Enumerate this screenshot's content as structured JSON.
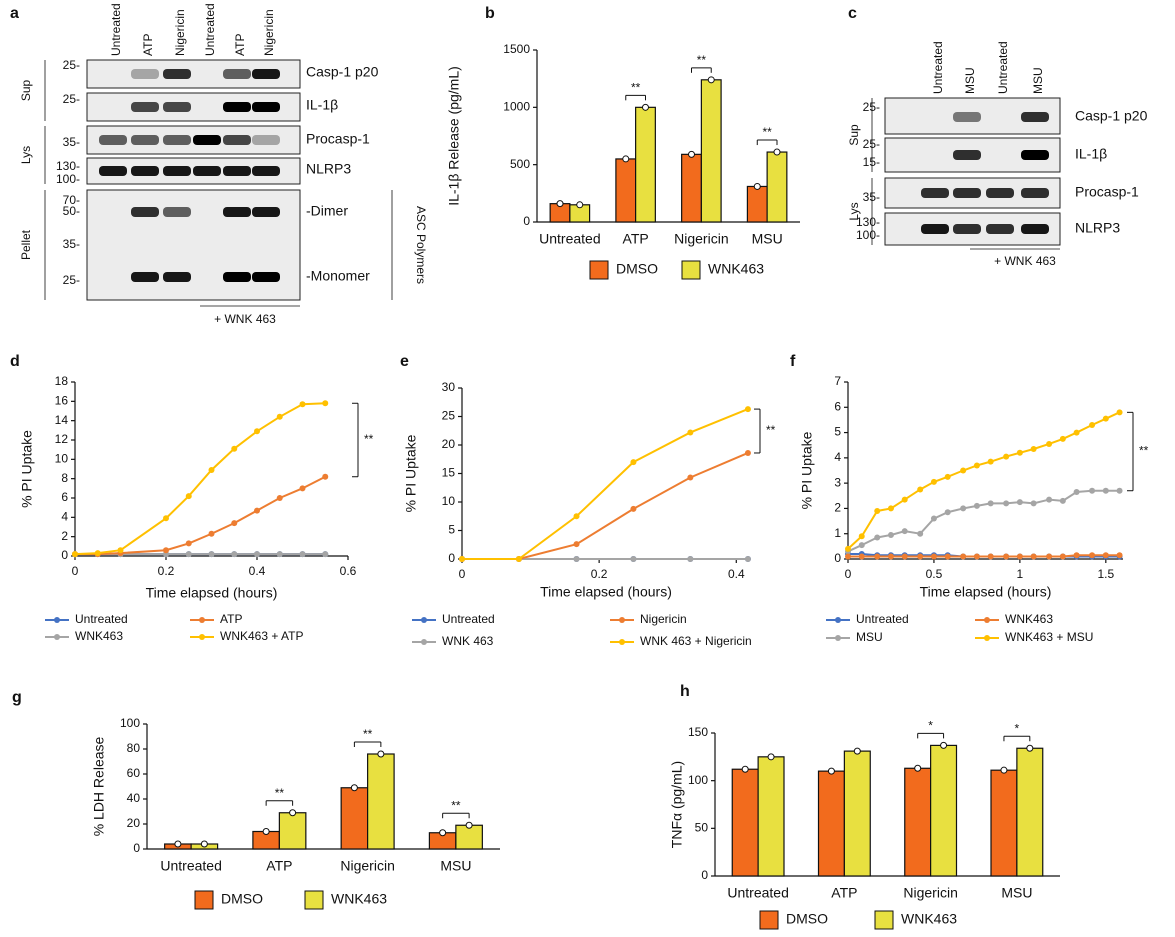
{
  "blots": [
    {
      "label": "a",
      "lanes": [
        "Untreated",
        "ATP",
        "Nigericin",
        "Untreated",
        "ATP",
        "Nigericin"
      ],
      "treatment": "+ WNK 463",
      "side_label": "ASC Polymers",
      "sections": [
        {
          "name": "Sup",
          "panels": [
            {
              "markers": [
                "25-"
              ],
              "labels": [
                "Casp-1 p20"
              ]
            },
            {
              "markers": [
                "25-"
              ],
              "labels": [
                "IL-1β"
              ]
            }
          ]
        },
        {
          "name": "Lys",
          "panels": [
            {
              "markers": [
                "35-"
              ],
              "labels": [
                "Procasp-1"
              ]
            },
            {
              "markers": [
                "130-",
                "100-"
              ],
              "labels": [
                "NLRP3"
              ]
            }
          ]
        },
        {
          "name": "Pellet",
          "panels": [
            {
              "markers": [
                "70-",
                "50-",
                "35-",
                "25-"
              ],
              "labels": [
                "-Dimer",
                "-Monomer"
              ]
            }
          ]
        }
      ]
    },
    {
      "label": "c",
      "lanes": [
        "Untreated",
        "MSU",
        "Untreated",
        "MSU"
      ],
      "treatment": "+ WNK 463",
      "sections": [
        {
          "name": "Sup",
          "panels": [
            {
              "markers": [
                "25-"
              ],
              "labels": [
                "Casp-1 p20"
              ]
            },
            {
              "markers": [
                "25-",
                "15-"
              ],
              "labels": [
                "IL-1β"
              ]
            }
          ]
        },
        {
          "name": "Lys",
          "panels": [
            {
              "markers": [
                "35-"
              ],
              "labels": [
                "Procasp-1"
              ]
            },
            {
              "markers": [
                "130-",
                "100-"
              ],
              "labels": [
                "NLRP3"
              ]
            }
          ]
        }
      ]
    }
  ],
  "chart_data": [
    {
      "type": "bar",
      "label": "b",
      "y_label": "IL-1β Release (pg/mL)",
      "categories": [
        "Untreated",
        "ATP",
        "Nigericin",
        "MSU"
      ],
      "series": [
        {
          "name": "DMSO",
          "color": "#f26b1d",
          "values": [
            160,
            550,
            590,
            310
          ]
        },
        {
          "name": "WNK463",
          "color": "#e8e040",
          "values": [
            150,
            1000,
            1240,
            610
          ]
        }
      ],
      "significance": [
        null,
        "**",
        "**",
        "**"
      ],
      "ylim": [
        0,
        1500
      ],
      "yticks": [
        0,
        500,
        1000,
        1500
      ]
    },
    {
      "type": "line",
      "label": "d",
      "x_label": "Time elapsed (hours)",
      "y_label": "% PI Uptake",
      "annotation": "**",
      "x": [
        0,
        0.05,
        0.1,
        0.2,
        0.25,
        0.3,
        0.35,
        0.4,
        0.45,
        0.5,
        0.55
      ],
      "series": [
        {
          "name": "Untreated",
          "color": "#4472c4",
          "values": [
            0.2,
            0.2,
            0.2,
            0.2,
            0.2,
            0.2,
            0.2,
            0.2,
            0.2,
            0.2,
            0.2
          ]
        },
        {
          "name": "ATP",
          "color": "#ed7d31",
          "values": [
            0.2,
            0.2,
            0.3,
            0.6,
            1.3,
            2.3,
            3.4,
            4.7,
            6.0,
            7.0,
            8.2
          ]
        },
        {
          "name": "WNK463",
          "color": "#a5a5a5",
          "values": [
            0.2,
            0.2,
            0.2,
            0.2,
            0.2,
            0.2,
            0.2,
            0.2,
            0.2,
            0.2,
            0.2
          ]
        },
        {
          "name": "WNK463 + ATP",
          "color": "#ffc000",
          "values": [
            0.2,
            0.3,
            0.6,
            3.9,
            6.2,
            8.9,
            11.1,
            12.9,
            14.4,
            15.7,
            15.8
          ]
        }
      ],
      "xlim": [
        0,
        0.6
      ],
      "xticks": [
        0,
        0.2,
        0.4,
        0.6
      ],
      "ylim": [
        0,
        18
      ],
      "yticks": [
        0,
        2,
        4,
        6,
        8,
        10,
        12,
        14,
        16,
        18
      ]
    },
    {
      "type": "line",
      "label": "e",
      "x_label": "Time elapsed (hours)",
      "y_label": "% PI Uptake",
      "annotation": "**",
      "x": [
        0,
        0.083,
        0.167,
        0.25,
        0.333,
        0.417
      ],
      "series": [
        {
          "name": "Untreated",
          "color": "#4472c4",
          "values": [
            0,
            0,
            0,
            0,
            0,
            0
          ]
        },
        {
          "name": "Nigericin",
          "color": "#ed7d31",
          "values": [
            0,
            0,
            2.6,
            8.8,
            14.3,
            18.6
          ]
        },
        {
          "name": "WNK 463",
          "color": "#a5a5a5",
          "values": [
            0,
            0,
            0,
            0,
            0,
            0
          ]
        },
        {
          "name": "WNK 463 + Nigericin",
          "color": "#ffc000",
          "values": [
            0,
            0,
            7.5,
            17,
            22.2,
            26.3
          ]
        }
      ],
      "xlim": [
        0,
        0.42
      ],
      "xticks": [
        0,
        0.2,
        0.4
      ],
      "ylim": [
        0,
        30
      ],
      "yticks": [
        0,
        5,
        10,
        15,
        20,
        25,
        30
      ]
    },
    {
      "type": "line",
      "label": "f",
      "x_label": "Time elapsed (hours)",
      "y_label": "% PI Uptake",
      "annotation": "**",
      "x": [
        0,
        0.08,
        0.17,
        0.25,
        0.33,
        0.42,
        0.5,
        0.58,
        0.67,
        0.75,
        0.83,
        0.92,
        1,
        1.08,
        1.17,
        1.25,
        1.33,
        1.42,
        1.5,
        1.58
      ],
      "series": [
        {
          "name": "Untreated",
          "color": "#4472c4",
          "values": [
            0.2,
            0.2,
            0.15,
            0.15,
            0.15,
            0.15,
            0.15,
            0.15,
            0.1,
            0.1,
            0.1,
            0.1,
            0.1,
            0.1,
            0.1,
            0.1,
            0.1,
            0.1,
            0.1,
            0.1
          ]
        },
        {
          "name": "WNK463",
          "color": "#ed7d31",
          "values": [
            0.1,
            0.1,
            0.1,
            0.1,
            0.1,
            0.1,
            0.1,
            0.1,
            0.1,
            0.1,
            0.1,
            0.1,
            0.1,
            0.1,
            0.1,
            0.1,
            0.15,
            0.15,
            0.15,
            0.15
          ]
        },
        {
          "name": "MSU",
          "color": "#a5a5a5",
          "values": [
            0.3,
            0.55,
            0.85,
            0.95,
            1.1,
            1.0,
            1.6,
            1.85,
            2.0,
            2.1,
            2.2,
            2.2,
            2.25,
            2.2,
            2.35,
            2.3,
            2.65,
            2.7,
            2.7,
            2.7
          ]
        },
        {
          "name": "WNK463 + MSU",
          "color": "#ffc000",
          "values": [
            0.4,
            0.9,
            1.9,
            2.0,
            2.35,
            2.75,
            3.05,
            3.25,
            3.5,
            3.7,
            3.85,
            4.05,
            4.2,
            4.35,
            4.55,
            4.75,
            5.0,
            5.3,
            5.55,
            5.8
          ]
        }
      ],
      "xlim": [
        0,
        1.6
      ],
      "xticks": [
        0,
        0.5,
        1,
        1.5
      ],
      "ylim": [
        0,
        7
      ],
      "yticks": [
        0,
        1,
        2,
        3,
        4,
        5,
        6,
        7
      ]
    },
    {
      "type": "bar",
      "label": "g",
      "y_label": "% LDH Release",
      "categories": [
        "Untreated",
        "ATP",
        "Nigericin",
        "MSU"
      ],
      "series": [
        {
          "name": "DMSO",
          "color": "#f26b1d",
          "values": [
            4,
            14,
            49,
            13
          ]
        },
        {
          "name": "WNK463",
          "color": "#e8e040",
          "values": [
            4,
            29,
            76,
            19
          ]
        }
      ],
      "significance": [
        null,
        "**",
        "**",
        "**"
      ],
      "ylim": [
        0,
        100
      ],
      "yticks": [
        0,
        20,
        40,
        60,
        80,
        100
      ]
    },
    {
      "type": "bar",
      "label": "h",
      "y_label": "TNFα (pg/mL)",
      "categories": [
        "Untreated",
        "ATP",
        "Nigericin",
        "MSU"
      ],
      "series": [
        {
          "name": "DMSO",
          "color": "#f26b1d",
          "values": [
            112,
            110,
            113,
            111
          ]
        },
        {
          "name": "WNK463",
          "color": "#e8e040",
          "values": [
            125,
            131,
            137,
            134
          ]
        }
      ],
      "significance": [
        null,
        null,
        "*",
        "*"
      ],
      "ylim": [
        0,
        150
      ],
      "yticks": [
        0,
        50,
        100,
        150
      ]
    }
  ]
}
